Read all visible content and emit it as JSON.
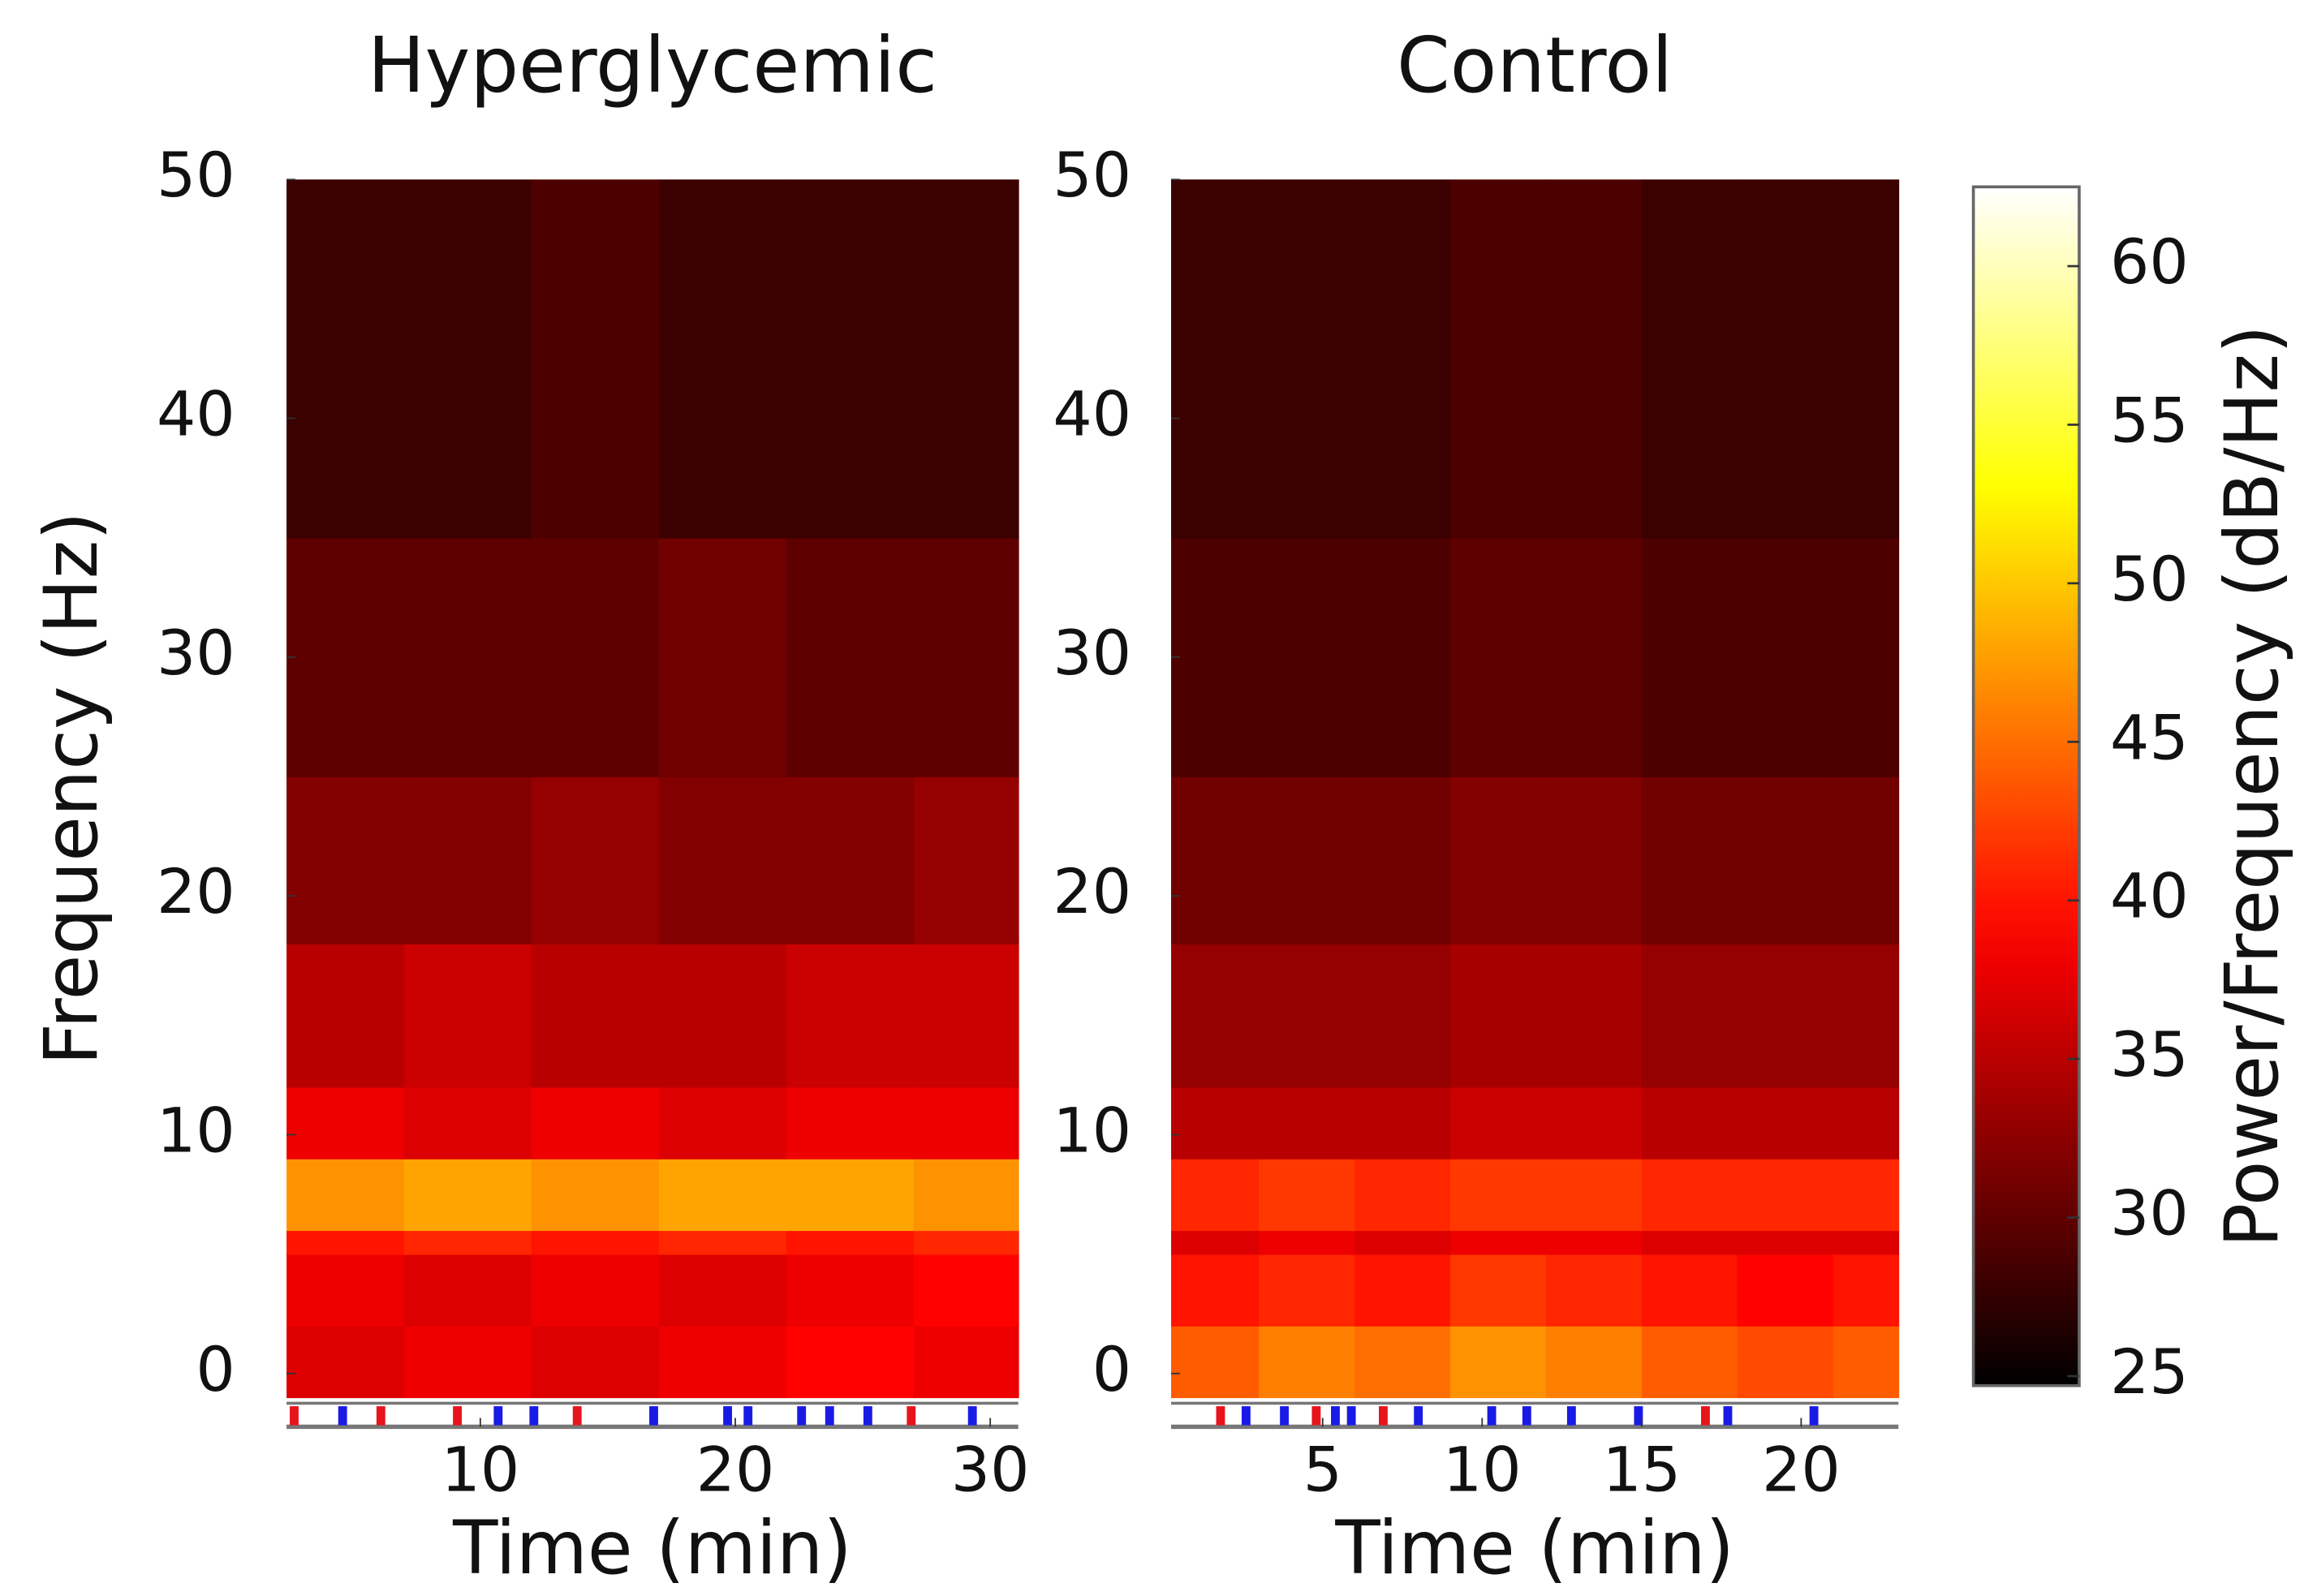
{
  "chart_data": [
    {
      "type": "heatmap",
      "title": "Hyperglycemic",
      "xlabel": "Time (min)",
      "ylabel": "Frequency (Hz)",
      "x_edges": [
        2.4,
        7,
        12,
        17,
        22,
        27,
        31.1
      ],
      "y_edges": [
        -1,
        2,
        5,
        6,
        9,
        12,
        18,
        25,
        35,
        50
      ],
      "values": [
        [
          37,
          38,
          37,
          38,
          39,
          38
        ],
        [
          38,
          37,
          38,
          37,
          38,
          39
        ],
        [
          40,
          41,
          40,
          41,
          40,
          41
        ],
        [
          47,
          48,
          47,
          48,
          48,
          47
        ],
        [
          38,
          37,
          38,
          37,
          38,
          38
        ],
        [
          35,
          36,
          35,
          35,
          36,
          36
        ],
        [
          32,
          32,
          33,
          32,
          32,
          33
        ],
        [
          30,
          30,
          30,
          31,
          30,
          30
        ],
        [
          28,
          28,
          29,
          28,
          28,
          28
        ]
      ],
      "xlim": [
        2.4,
        31.1
      ],
      "ylim": [
        -1,
        50
      ],
      "xticks": [
        10,
        20,
        30
      ],
      "yticks": [
        0,
        10,
        20,
        30,
        40,
        50
      ],
      "event_markers": [
        {
          "color": "#e8141c",
          "x": [
            2.7,
            6.1,
            9.1,
            13.8,
            26.9
          ]
        },
        {
          "color": "#1a1ae6",
          "x": [
            4.6,
            10.7,
            12.1,
            16.8,
            19.7,
            20.5,
            22.6,
            23.7,
            25.2,
            29.3
          ]
        }
      ]
    },
    {
      "type": "heatmap",
      "title": "Control",
      "xlabel": "Time (min)",
      "x_edges": [
        0.25,
        3,
        6,
        9,
        12,
        15,
        18,
        21,
        23.05
      ],
      "y_edges": [
        -1,
        2,
        5,
        6,
        9,
        12,
        18,
        25,
        35,
        50
      ],
      "values": [
        [
          44,
          46,
          45,
          47,
          46,
          44,
          43,
          44
        ],
        [
          40,
          41,
          40,
          42,
          41,
          40,
          39,
          40
        ],
        [
          37,
          38,
          37,
          38,
          38,
          37,
          37,
          37
        ],
        [
          41,
          42,
          41,
          42,
          42,
          41,
          41,
          41
        ],
        [
          35,
          35,
          35,
          36,
          36,
          35,
          35,
          35
        ],
        [
          33,
          33,
          33,
          34,
          34,
          33,
          33,
          33
        ],
        [
          31,
          31,
          31,
          32,
          32,
          31,
          31,
          31
        ],
        [
          29,
          29,
          29,
          30,
          30,
          29,
          29,
          29
        ],
        [
          28,
          28,
          28,
          29,
          29,
          28,
          28,
          28
        ]
      ],
      "xlim": [
        0.25,
        23.05
      ],
      "ylim": [
        -1,
        50
      ],
      "xticks": [
        5,
        10,
        15,
        20
      ],
      "yticks": [
        0,
        10,
        20,
        30,
        40,
        50
      ],
      "event_markers": [
        {
          "color": "#e8141c",
          "x": [
            1.8,
            4.8,
            6.9,
            17.0
          ]
        },
        {
          "color": "#1a1ae6",
          "x": [
            2.6,
            3.8,
            5.4,
            5.9,
            8.0,
            10.3,
            11.4,
            12.8,
            14.9,
            17.7,
            20.4
          ]
        }
      ]
    }
  ],
  "colorbar": {
    "label": "Power/Frequency (dB/Hz)",
    "colormap": "hot",
    "lim": [
      24.7,
      62.5
    ],
    "ticks": [
      25,
      30,
      35,
      40,
      45,
      50,
      55,
      60
    ]
  }
}
